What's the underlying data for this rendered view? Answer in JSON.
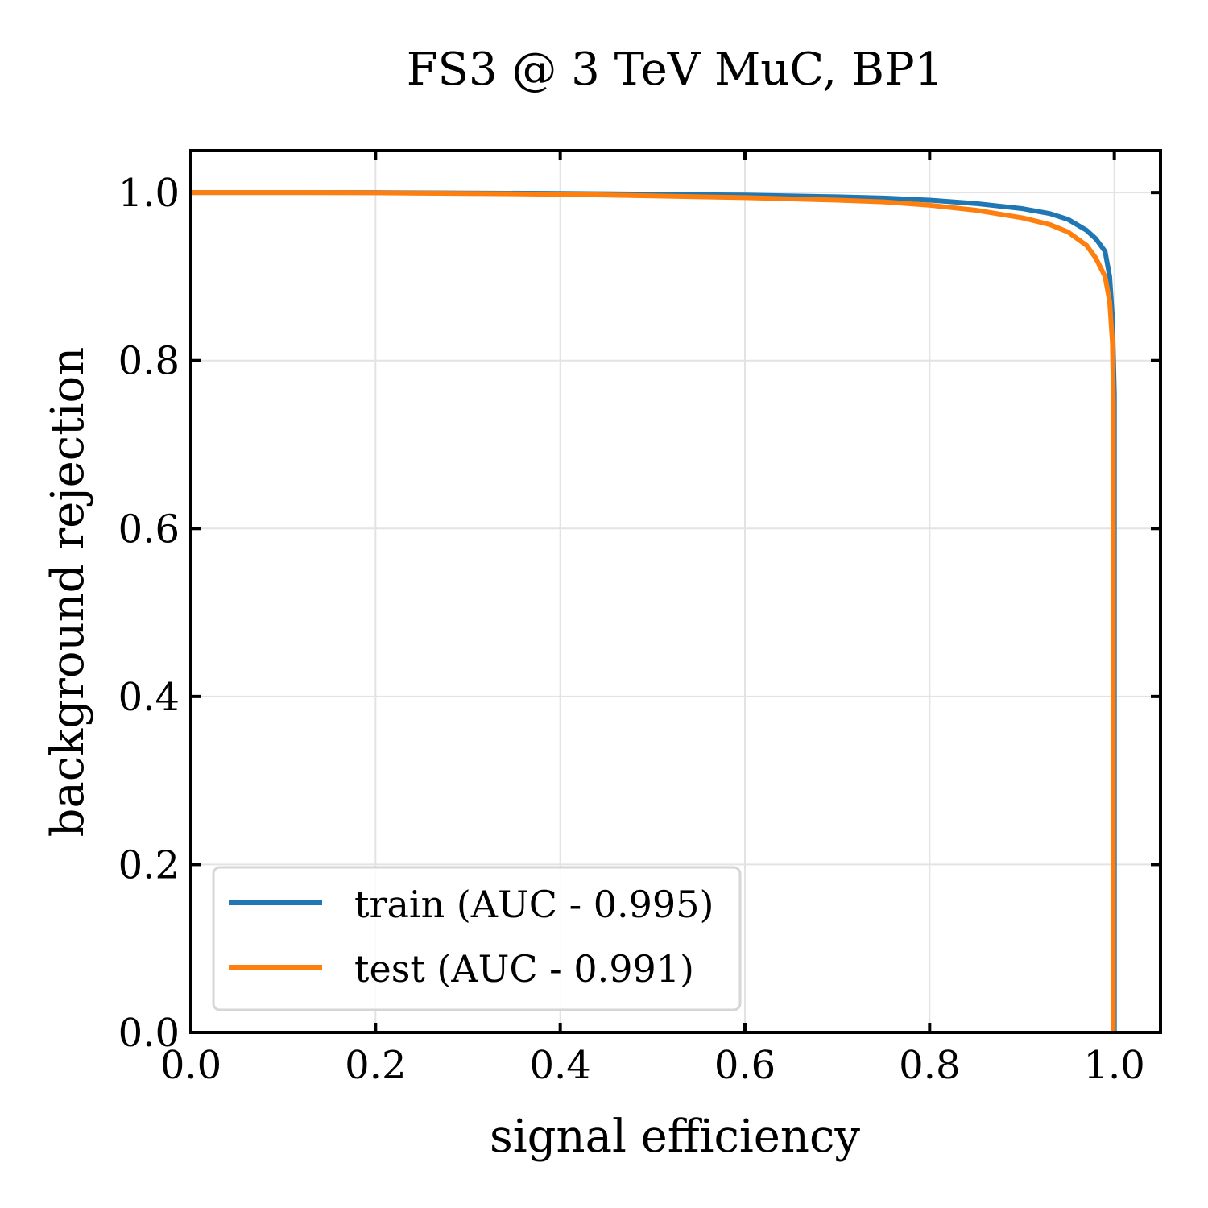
{
  "chart_data": {
    "type": "line",
    "title": "FS3 @ 3 TeV MuC, BP1",
    "xlabel": "signal efficiency",
    "ylabel": "background rejection",
    "xlim": [
      0.0,
      1.05
    ],
    "ylim": [
      0.0,
      1.05
    ],
    "xticks": [
      "0.0",
      "0.2",
      "0.4",
      "0.6",
      "0.8",
      "1.0"
    ],
    "yticks": [
      "0.0",
      "0.2",
      "0.4",
      "0.6",
      "0.8",
      "1.0"
    ],
    "grid": true,
    "legend_position": "lower-left",
    "series": [
      {
        "name": "train (AUC - 0.995)",
        "color": "#1f77b4",
        "x": [
          0.0,
          0.1,
          0.2,
          0.3,
          0.4,
          0.5,
          0.6,
          0.7,
          0.75,
          0.8,
          0.85,
          0.9,
          0.93,
          0.95,
          0.97,
          0.98,
          0.99,
          0.995,
          0.998,
          1.0,
          1.0
        ],
        "y": [
          1.0,
          1.0,
          1.0,
          0.9995,
          0.999,
          0.998,
          0.997,
          0.995,
          0.9935,
          0.991,
          0.987,
          0.981,
          0.975,
          0.968,
          0.955,
          0.945,
          0.93,
          0.9,
          0.85,
          0.76,
          0.0
        ]
      },
      {
        "name": "test (AUC - 0.991)",
        "color": "#ff7f0e",
        "x": [
          0.0,
          0.1,
          0.2,
          0.3,
          0.4,
          0.5,
          0.6,
          0.7,
          0.75,
          0.8,
          0.85,
          0.9,
          0.93,
          0.95,
          0.97,
          0.98,
          0.99,
          0.995,
          0.998,
          0.999,
          0.999
        ],
        "y": [
          1.0,
          1.0,
          0.9998,
          0.999,
          0.998,
          0.996,
          0.994,
          0.991,
          0.989,
          0.985,
          0.979,
          0.97,
          0.962,
          0.953,
          0.937,
          0.922,
          0.9,
          0.87,
          0.82,
          0.75,
          0.0
        ]
      }
    ]
  }
}
